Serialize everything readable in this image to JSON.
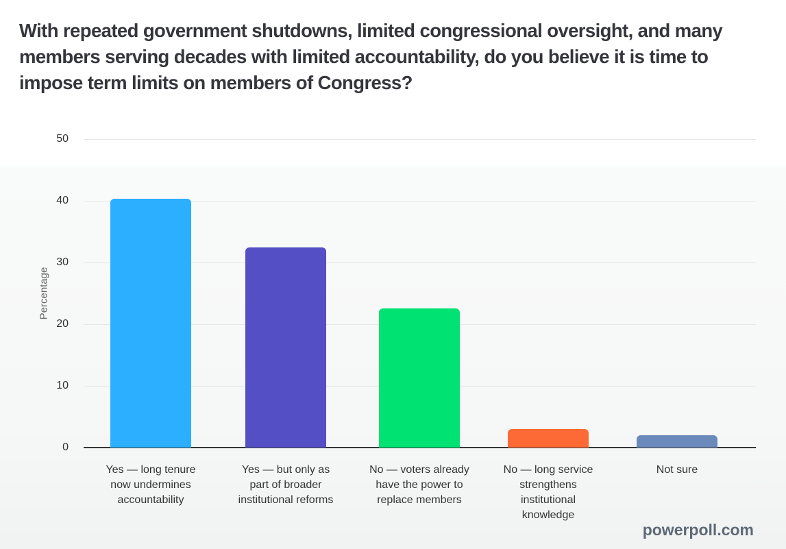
{
  "page": {
    "title": "With repeated government shutdowns, limited congressional oversight, and many members serving decades with limited accountability, do you believe it is time to impose term limits on members of Congress?",
    "watermark": "powerpoll.com"
  },
  "chart_data": {
    "type": "bar",
    "title": "",
    "xlabel": "",
    "ylabel": "Percentage",
    "ylim": [
      0,
      50
    ],
    "yticks": [
      0,
      10,
      20,
      30,
      40,
      50
    ],
    "grid": true,
    "legend": false,
    "categories": [
      "Yes — long tenure now undermines accountability",
      "Yes — but only as part of broader institutional reforms",
      "No — voters already have the power to replace members",
      "No — long service strengthens institutional knowledge",
      "Not sure"
    ],
    "values": [
      40.3,
      32.4,
      22.6,
      3,
      2
    ],
    "colors": [
      "#2CAFFE",
      "#544FC5",
      "#00E272",
      "#FE6A35",
      "#6B8ABC"
    ],
    "bar_colors_semantic": [
      "blue",
      "indigo",
      "green",
      "orange",
      "steel-blue"
    ],
    "axis_line_color": "#363636",
    "gridline_color": "#e7e7e7"
  }
}
